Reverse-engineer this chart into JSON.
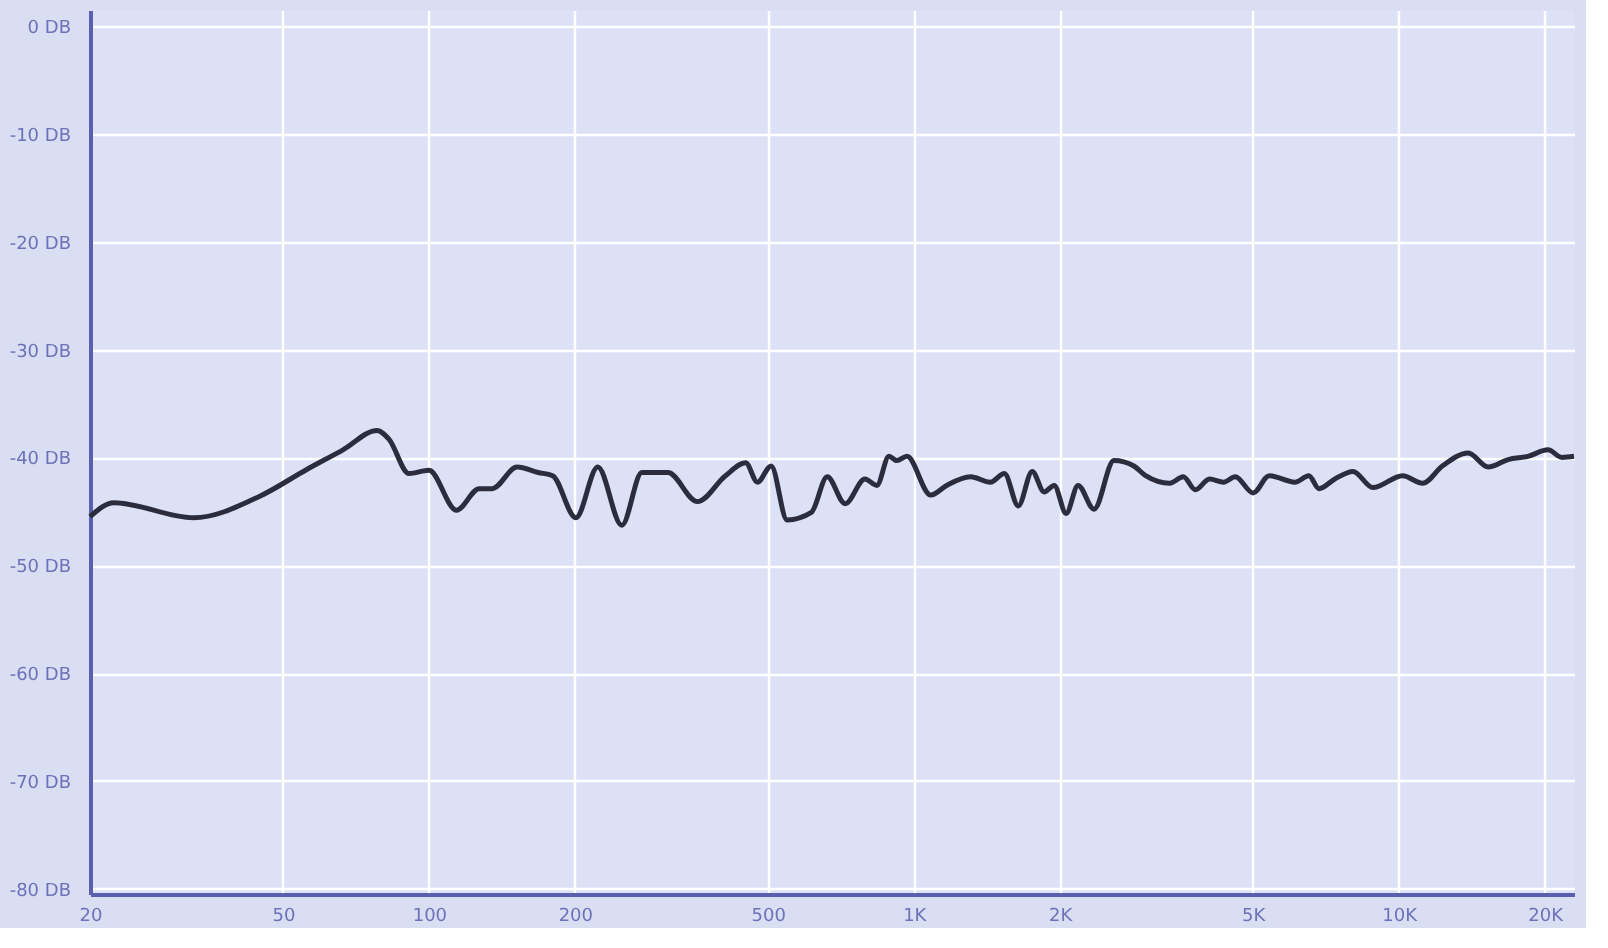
{
  "chart_data": {
    "type": "line",
    "x": [
      20,
      22.4,
      32.7,
      44.8,
      56.1,
      66.5,
      78.2,
      82.7,
      91,
      100,
      114,
      127,
      135,
      152,
      168,
      180,
      201,
      223,
      250,
      275,
      311,
      358,
      409,
      450,
      476,
      508,
      548,
      615,
      663,
      722,
      793,
      839,
      889,
      923,
      968,
      1084,
      1169,
      1310,
      1439,
      1538,
      1643,
      1755,
      1857,
      1948,
      2062,
      2182,
      2354,
      2588,
      2844,
      3007,
      3372,
      3597,
      3809,
      4074,
      4355,
      4604,
      5012,
      5408,
      6113,
      6531,
      6849,
      7389,
      8052,
      8851,
      10190,
      11200,
      12310,
      13920,
      15300,
      16820,
      18490,
      20320,
      21730,
      23000
    ],
    "series": [
      {
        "color": "#2b2d3f",
        "values": [
          -45.5,
          -44.2,
          -45.6,
          -43.6,
          -41.1,
          -39.3,
          -37.5,
          -38.3,
          -41.5,
          -41.2,
          -44.9,
          -42.9,
          -42.9,
          -40.9,
          -41.4,
          -41.7,
          -45.6,
          -40.9,
          -46.3,
          -41.4,
          -41.4,
          -44.1,
          -41.7,
          -40.5,
          -42.3,
          -40.8,
          -45.8,
          -45.1,
          -41.8,
          -44.3,
          -42.0,
          -42.6,
          -39.9,
          -40.3,
          -39.9,
          -43.5,
          -42.6,
          -41.8,
          -42.3,
          -41.5,
          -44.5,
          -41.3,
          -43.2,
          -42.6,
          -45.2,
          -42.6,
          -44.8,
          -40.3,
          -40.8,
          -41.7,
          -42.4,
          -41.8,
          -43.0,
          -42.0,
          -42.3,
          -41.8,
          -43.3,
          -41.7,
          -42.3,
          -41.7,
          -42.9,
          -42.0,
          -41.3,
          -42.8,
          -41.7,
          -42.4,
          -40.8,
          -39.6,
          -40.9,
          -40.2,
          -39.9,
          -39.3,
          -40.0,
          -39.9
        ]
      }
    ],
    "log": "x",
    "xlim": [
      20,
      23000
    ],
    "xticks": [
      20,
      50,
      100,
      200,
      500,
      {
        "value": 1000,
        "label": "1K"
      },
      {
        "value": 2000,
        "label": "2K"
      },
      {
        "value": 5000,
        "label": "5K"
      },
      {
        "value": 10000,
        "label": "10K"
      },
      {
        "value": 20000,
        "label": "20K"
      }
    ],
    "ylim": [
      -80.5,
      1.5
    ],
    "yticks": [
      {
        "value": 0,
        "label": "0 DB"
      },
      {
        "value": -10,
        "label": "-10 DB"
      },
      {
        "value": -20,
        "label": "-20 DB"
      },
      {
        "value": -30,
        "label": "-30 DB"
      },
      {
        "value": -40,
        "label": "-40 DB"
      },
      {
        "value": -50,
        "label": "-50 DB"
      },
      {
        "value": -60,
        "label": "-60 DB"
      },
      {
        "value": -70,
        "label": "-70 DB"
      },
      {
        "value": -80,
        "label": "-80 DB"
      }
    ],
    "grid": true,
    "line_style": "solid"
  }
}
